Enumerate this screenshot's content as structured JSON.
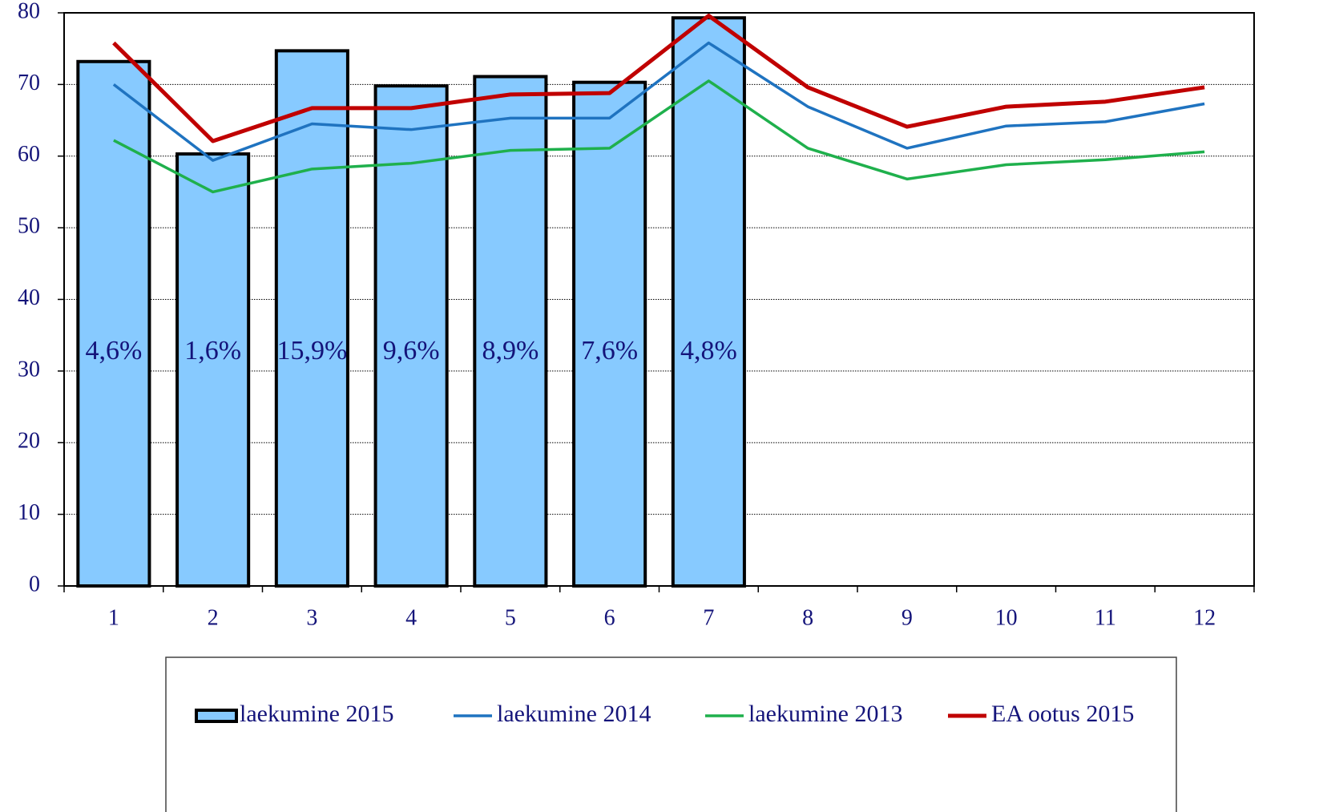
{
  "chart_data": {
    "type": "bar",
    "categories": [
      "1",
      "2",
      "3",
      "4",
      "5",
      "6",
      "7",
      "8",
      "9",
      "10",
      "11",
      "12"
    ],
    "series": [
      {
        "name": "laekumine 2015",
        "type": "bar",
        "color": "#87caff",
        "values": [
          73.2,
          60.3,
          74.7,
          69.8,
          71.1,
          70.3,
          79.3,
          null,
          null,
          null,
          null,
          null
        ],
        "value_labels": [
          "4,6%",
          "1,6%",
          "15,9%",
          "9,6%",
          "8,9%",
          "7,6%",
          "4,8%",
          null,
          null,
          null,
          null,
          null
        ]
      },
      {
        "name": "laekumine 2014",
        "type": "line",
        "color": "#1f73c0",
        "values": [
          70,
          59.4,
          64.5,
          63.7,
          65.3,
          65.3,
          75.8,
          66.9,
          61.1,
          64.2,
          64.8,
          67.3
        ]
      },
      {
        "name": "laekumine 2013",
        "type": "line",
        "color": "#1fb04c",
        "values": [
          62.2,
          55,
          58.2,
          59,
          60.8,
          61.1,
          70.5,
          61.1,
          56.8,
          58.8,
          59.5,
          60.6
        ]
      },
      {
        "name": "EA ootus 2015",
        "type": "line",
        "color": "#c00000",
        "values": [
          75.8,
          62.1,
          66.7,
          66.7,
          68.6,
          68.8,
          79.6,
          69.6,
          64.1,
          66.9,
          67.6,
          69.6
        ]
      }
    ],
    "ylim": [
      0,
      80
    ],
    "yticks": [
      0,
      10,
      20,
      30,
      40,
      50,
      60,
      70,
      80
    ],
    "grid": true
  }
}
